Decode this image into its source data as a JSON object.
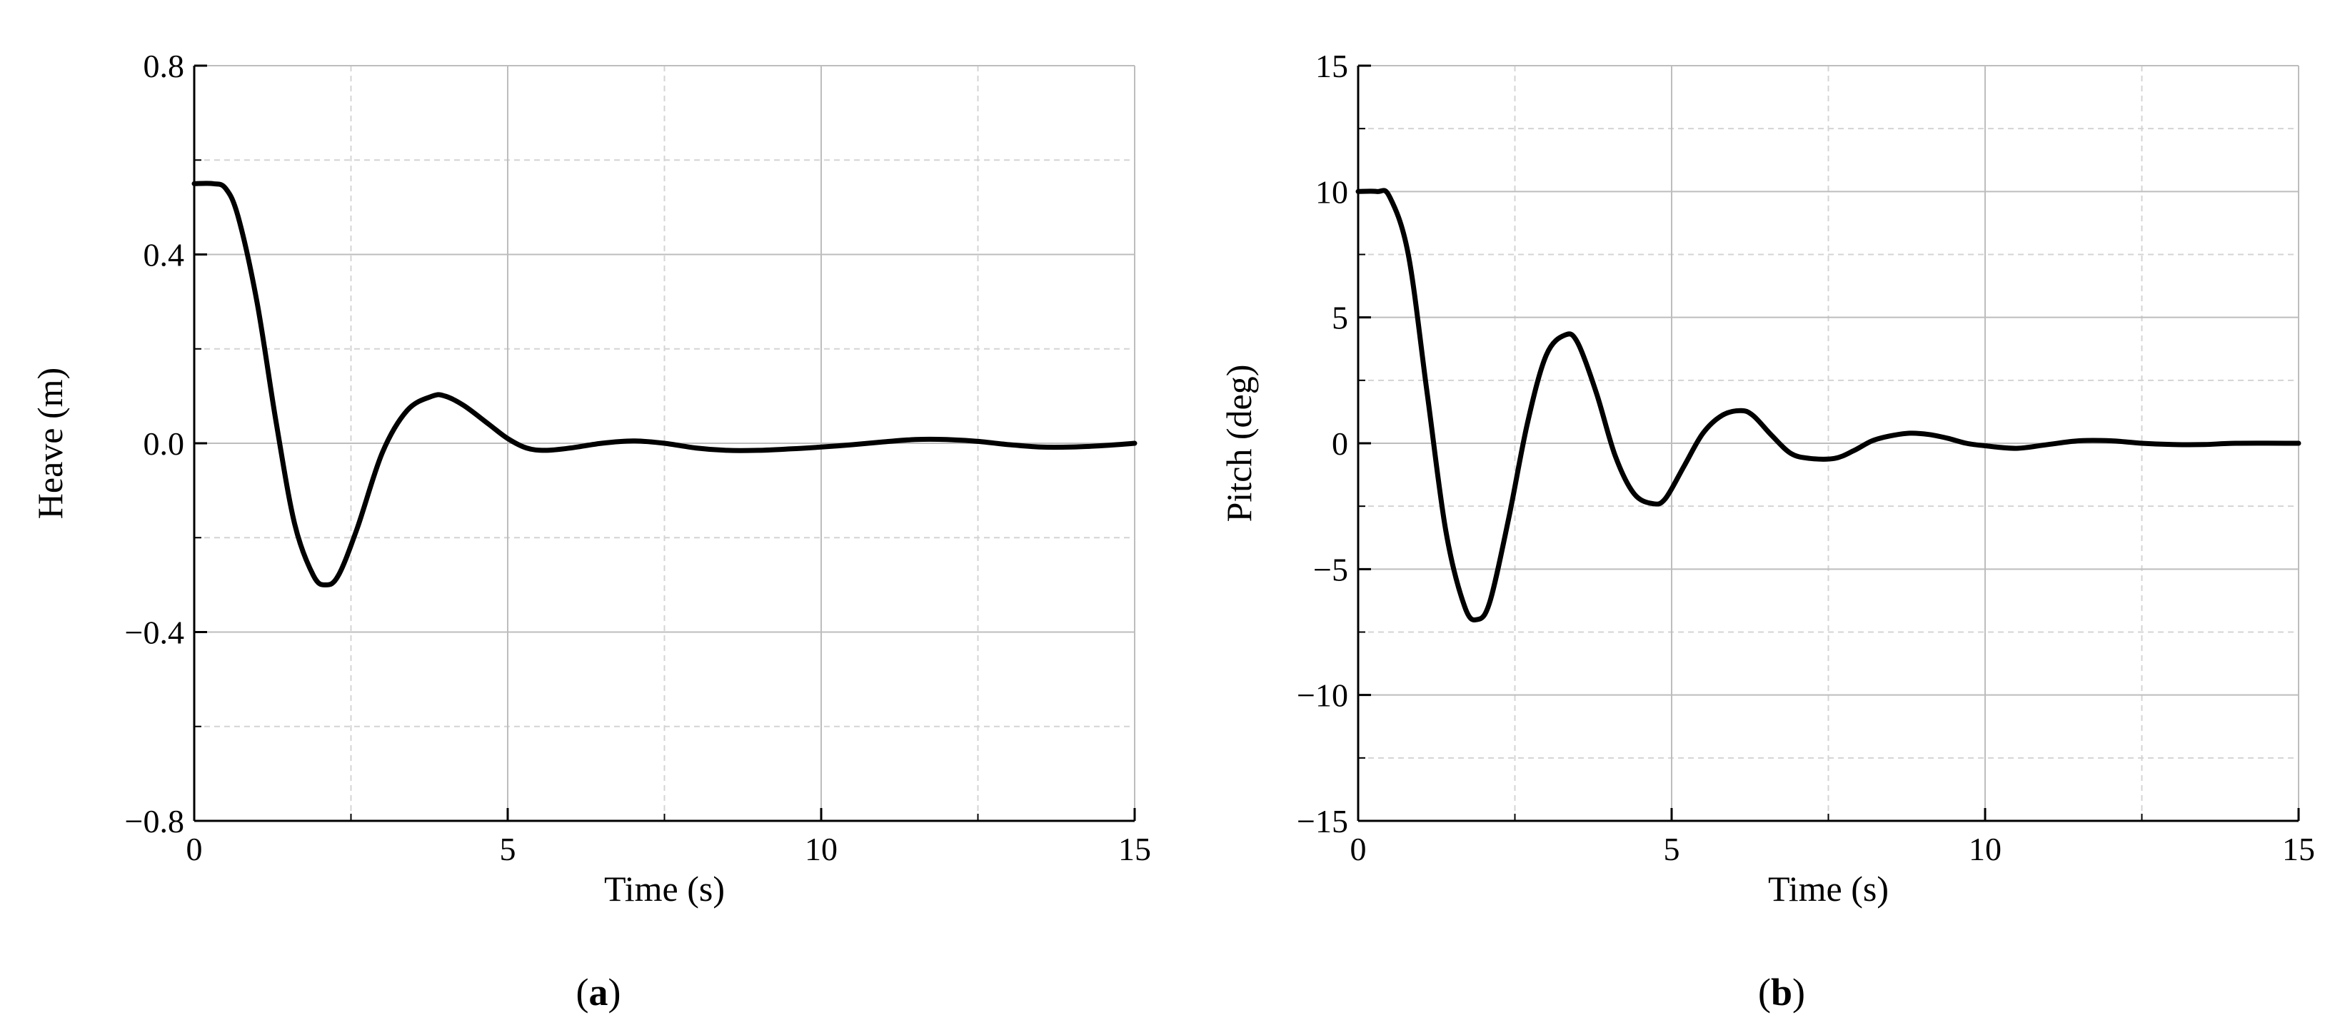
{
  "figure": {
    "panels": [
      {
        "label_open": "(",
        "label_letter": "a",
        "label_close": ")"
      },
      {
        "label_open": "(",
        "label_letter": "b",
        "label_close": ")"
      }
    ]
  },
  "chart_data": [
    {
      "type": "line",
      "title": "",
      "xlabel": "Time (s)",
      "ylabel": "Heave (m)",
      "xlim": [
        0,
        15
      ],
      "ylim": [
        -0.8,
        0.8
      ],
      "xticks": [
        0,
        5,
        10,
        15
      ],
      "xtick_labels": [
        "0",
        "5",
        "10",
        "15"
      ],
      "yticks": [
        -0.8,
        -0.4,
        0.0,
        0.4,
        0.8
      ],
      "ytick_labels": [
        "−0.8",
        "−0.4",
        "0.0",
        "0.4",
        "0.8"
      ],
      "grid": true,
      "legend": "none",
      "line_color": "#000000",
      "series": [
        {
          "x": [
            0,
            0.3,
            0.5,
            0.7,
            1.0,
            1.3,
            1.6,
            1.9,
            2.1,
            2.3,
            2.6,
            3.0,
            3.4,
            3.8,
            4.0,
            4.3,
            4.7,
            5.0,
            5.3,
            5.6,
            6.0,
            6.5,
            7.0,
            7.5,
            8.0,
            8.5,
            9.0,
            9.5,
            10.0,
            10.5,
            11.0,
            11.5,
            12.0,
            12.5,
            13.0,
            13.5,
            14.0,
            14.5,
            15.0
          ],
          "y": [
            0.55,
            0.55,
            0.54,
            0.48,
            0.3,
            0.05,
            -0.17,
            -0.28,
            -0.3,
            -0.28,
            -0.18,
            -0.02,
            0.07,
            0.1,
            0.1,
            0.08,
            0.04,
            0.01,
            -0.01,
            -0.015,
            -0.01,
            0.0,
            0.005,
            0.0,
            -0.01,
            -0.015,
            -0.015,
            -0.012,
            -0.008,
            -0.003,
            0.003,
            0.008,
            0.008,
            0.004,
            -0.003,
            -0.008,
            -0.008,
            -0.005,
            0.0
          ]
        }
      ]
    },
    {
      "type": "line",
      "title": "",
      "xlabel": "Time (s)",
      "ylabel": "Pitch (deg)",
      "xlim": [
        0,
        15
      ],
      "ylim": [
        -15,
        15
      ],
      "xticks": [
        0,
        5,
        10,
        15
      ],
      "xtick_labels": [
        "0",
        "5",
        "10",
        "15"
      ],
      "yticks": [
        -15,
        -10,
        -5,
        0,
        5,
        10,
        15
      ],
      "ytick_labels": [
        "−15",
        "−10",
        "−5",
        "0",
        "5",
        "10",
        "15"
      ],
      "grid": true,
      "legend": "none",
      "line_color": "#000000",
      "series": [
        {
          "x": [
            0,
            0.3,
            0.5,
            0.8,
            1.1,
            1.4,
            1.7,
            1.9,
            2.1,
            2.4,
            2.7,
            3.0,
            3.3,
            3.5,
            3.8,
            4.1,
            4.4,
            4.7,
            4.9,
            5.2,
            5.5,
            5.8,
            6.1,
            6.3,
            6.6,
            6.9,
            7.2,
            7.6,
            7.9,
            8.2,
            8.5,
            8.8,
            9.1,
            9.4,
            9.7,
            10.0,
            10.5,
            11.0,
            11.5,
            12.0,
            12.5,
            13.0,
            13.5,
            14.0,
            15.0
          ],
          "y": [
            10,
            10,
            9.8,
            7.5,
            2.0,
            -3.5,
            -6.5,
            -7.0,
            -6.3,
            -3.0,
            0.8,
            3.5,
            4.3,
            4.0,
            2.0,
            -0.5,
            -2.0,
            -2.4,
            -2.2,
            -0.9,
            0.4,
            1.1,
            1.3,
            1.1,
            0.3,
            -0.4,
            -0.6,
            -0.6,
            -0.3,
            0.1,
            0.3,
            0.4,
            0.35,
            0.2,
            0.0,
            -0.1,
            -0.2,
            -0.05,
            0.1,
            0.1,
            0.0,
            -0.05,
            -0.05,
            0.0,
            0.0
          ]
        }
      ]
    }
  ]
}
